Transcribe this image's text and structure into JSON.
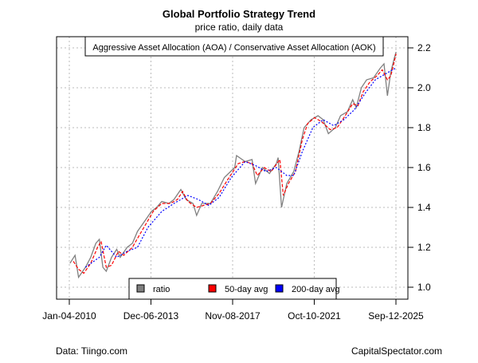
{
  "chart_data": {
    "type": "line",
    "title": "Global Portfolio Strategy Trend",
    "subtitle": "price ratio, daily data",
    "annotation": "Aggressive Asset Allocation (AOA) / Conservative Asset Allocation (AOK)",
    "xlabel": "",
    "ylabel": "",
    "x_ticks": [
      "Jan-04-2010",
      "Dec-06-2013",
      "Nov-08-2017",
      "Oct-10-2021",
      "Sep-12-2025"
    ],
    "x_tick_dates": [
      "2010-01-04",
      "2013-12-06",
      "2017-11-08",
      "2021-10-10",
      "2025-09-12"
    ],
    "y_ticks": [
      1.0,
      1.2,
      1.4,
      1.6,
      1.8,
      2.0,
      2.2
    ],
    "ylim": [
      0.95,
      2.27
    ],
    "grid": true,
    "legend_position": "bottom",
    "series": [
      {
        "name": "ratio",
        "color": "#808080",
        "style": "solid",
        "x": [
          "2010-01",
          "2010-04",
          "2010-06",
          "2010-10",
          "2011-01",
          "2011-04",
          "2011-06",
          "2011-08",
          "2011-10",
          "2012-01",
          "2012-04",
          "2012-06",
          "2012-10",
          "2013-01",
          "2013-04",
          "2013-08",
          "2013-12",
          "2014-03",
          "2014-06",
          "2014-10",
          "2015-01",
          "2015-05",
          "2015-08",
          "2015-12",
          "2016-02",
          "2016-05",
          "2016-10",
          "2017-02",
          "2017-06",
          "2017-12",
          "2018-01",
          "2018-06",
          "2018-10",
          "2018-12",
          "2019-04",
          "2019-08",
          "2019-12",
          "2020-01",
          "2020-03",
          "2020-06",
          "2020-10",
          "2021-01",
          "2021-04",
          "2021-08",
          "2021-12",
          "2022-03",
          "2022-06",
          "2022-10",
          "2023-01",
          "2023-05",
          "2023-08",
          "2023-10",
          "2024-01",
          "2024-04",
          "2024-08",
          "2024-12",
          "2025-02",
          "2025-04",
          "2025-06",
          "2025-08",
          "2025-09"
        ],
        "values": [
          1.12,
          1.16,
          1.05,
          1.1,
          1.15,
          1.22,
          1.24,
          1.1,
          1.08,
          1.15,
          1.19,
          1.15,
          1.2,
          1.22,
          1.28,
          1.33,
          1.38,
          1.4,
          1.43,
          1.42,
          1.44,
          1.49,
          1.44,
          1.42,
          1.36,
          1.42,
          1.42,
          1.48,
          1.55,
          1.6,
          1.66,
          1.63,
          1.64,
          1.52,
          1.6,
          1.57,
          1.62,
          1.65,
          1.4,
          1.52,
          1.58,
          1.68,
          1.8,
          1.84,
          1.86,
          1.84,
          1.77,
          1.8,
          1.86,
          1.88,
          1.94,
          1.9,
          2.0,
          2.04,
          2.05,
          2.1,
          2.12,
          1.96,
          2.08,
          2.15,
          2.18
        ]
      },
      {
        "name": "50-day avg",
        "color": "#ff0000",
        "style": "dashed",
        "x": [
          "2010-03",
          "2010-06",
          "2010-09",
          "2011-01",
          "2011-05",
          "2011-07",
          "2011-10",
          "2012-01",
          "2012-05",
          "2012-08",
          "2013-01",
          "2013-05",
          "2013-09",
          "2014-01",
          "2014-06",
          "2014-11",
          "2015-03",
          "2015-06",
          "2015-09",
          "2016-02",
          "2016-06",
          "2016-10",
          "2017-03",
          "2017-08",
          "2018-02",
          "2018-06",
          "2018-10",
          "2019-01",
          "2019-05",
          "2019-09",
          "2020-02",
          "2020-04",
          "2020-07",
          "2020-11",
          "2021-03",
          "2021-06",
          "2021-10",
          "2022-02",
          "2022-07",
          "2022-11",
          "2023-03",
          "2023-08",
          "2023-11",
          "2024-02",
          "2024-06",
          "2024-10",
          "2025-01",
          "2025-04",
          "2025-06",
          "2025-09"
        ],
        "values": [
          1.13,
          1.09,
          1.07,
          1.12,
          1.2,
          1.23,
          1.1,
          1.11,
          1.18,
          1.16,
          1.2,
          1.26,
          1.32,
          1.38,
          1.42,
          1.42,
          1.44,
          1.48,
          1.43,
          1.4,
          1.41,
          1.42,
          1.47,
          1.54,
          1.62,
          1.63,
          1.62,
          1.56,
          1.6,
          1.58,
          1.64,
          1.46,
          1.52,
          1.58,
          1.74,
          1.82,
          1.85,
          1.83,
          1.79,
          1.8,
          1.85,
          1.92,
          1.91,
          1.98,
          2.03,
          2.06,
          2.09,
          2.04,
          2.06,
          2.17
        ]
      },
      {
        "name": "200-day avg",
        "color": "#0000ff",
        "style": "dotted",
        "x": [
          "2010-10",
          "2011-06",
          "2011-10",
          "2012-04",
          "2012-10",
          "2013-04",
          "2013-10",
          "2014-06",
          "2015-01",
          "2015-09",
          "2016-03",
          "2016-09",
          "2017-03",
          "2017-10",
          "2018-06",
          "2018-12",
          "2019-06",
          "2019-12",
          "2020-06",
          "2020-10",
          "2021-03",
          "2021-09",
          "2022-03",
          "2022-09",
          "2023-03",
          "2023-09",
          "2024-03",
          "2024-09",
          "2025-03",
          "2025-09"
        ],
        "values": [
          1.1,
          1.15,
          1.21,
          1.15,
          1.18,
          1.2,
          1.3,
          1.38,
          1.42,
          1.46,
          1.44,
          1.41,
          1.45,
          1.55,
          1.63,
          1.61,
          1.58,
          1.6,
          1.56,
          1.56,
          1.68,
          1.8,
          1.84,
          1.81,
          1.84,
          1.89,
          1.97,
          2.04,
          2.07,
          2.1
        ]
      }
    ]
  },
  "footer": {
    "left": "Data: Tiingo.com",
    "right": "CapitalSpectator.com"
  }
}
